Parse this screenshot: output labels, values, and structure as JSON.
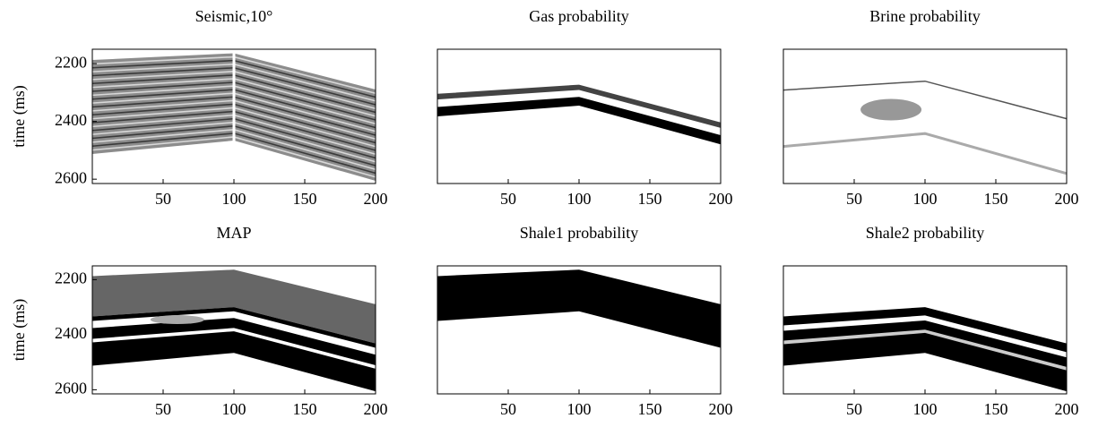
{
  "chart_data": [
    {
      "type": "heatmap",
      "title": "Seismic,10°",
      "ylabel": "time (ms)",
      "xlim": [
        0,
        200
      ],
      "ylim": [
        2150,
        2615
      ],
      "yreverse": true,
      "xticks": [
        50,
        100,
        150,
        200
      ],
      "yticks": [
        2200,
        2400,
        2600
      ]
    },
    {
      "type": "heatmap",
      "title": "Gas probability",
      "xlim": [
        0,
        200
      ],
      "ylim": [
        2150,
        2615
      ],
      "yreverse": true,
      "xticks": [
        50,
        100,
        150,
        200
      ]
    },
    {
      "type": "heatmap",
      "title": "Brine probability",
      "xlim": [
        0,
        200
      ],
      "ylim": [
        2150,
        2615
      ],
      "yreverse": true,
      "xticks": [
        50,
        100,
        150,
        200
      ]
    },
    {
      "type": "heatmap",
      "title": "MAP",
      "ylabel": "time (ms)",
      "xlim": [
        0,
        200
      ],
      "ylim": [
        2150,
        2615
      ],
      "yreverse": true,
      "xticks": [
        50,
        100,
        150,
        200
      ],
      "yticks": [
        2200,
        2400,
        2600
      ]
    },
    {
      "type": "heatmap",
      "title": "Shale1 probability",
      "xlim": [
        0,
        200
      ],
      "ylim": [
        2150,
        2615
      ],
      "yreverse": true,
      "xticks": [
        50,
        100,
        150,
        200
      ]
    },
    {
      "type": "heatmap",
      "title": "Shale2 probability",
      "xlim": [
        0,
        200
      ],
      "ylim": [
        2150,
        2615
      ],
      "yreverse": true,
      "xticks": [
        50,
        100,
        150,
        200
      ]
    }
  ]
}
